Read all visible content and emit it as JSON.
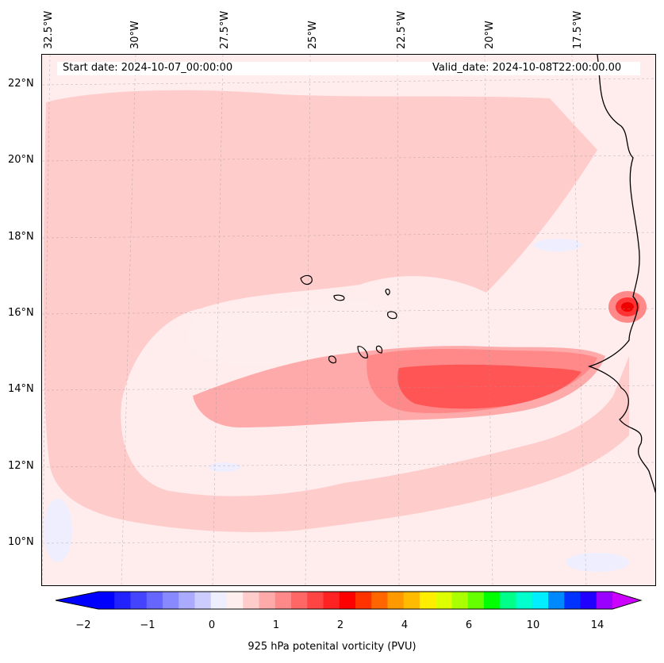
{
  "header": {
    "start_date": "Start date: 2024-10-07_00:00:00",
    "valid_date": "Valid_date: 2024-10-08T22:00:00.00"
  },
  "map": {
    "longitude_labels": [
      "32.5°W",
      "30°W",
      "27.5°W",
      "25°W",
      "22.5°W",
      "20°W",
      "17.5°W"
    ],
    "latitude_labels": [
      "22°N",
      "20°N",
      "18°N",
      "16°N",
      "14°N",
      "12°N",
      "10°N"
    ],
    "field": "925 hPa potential vorticity",
    "max_feature": "intense positive PV maximum near the coast at about 16.5°N, 16.5°W",
    "band_feature": "elevated PV band south of the Cape Verde islands, about 13–15°N"
  },
  "colorbar": {
    "label": "925 hPa potenital vorticity (PVU)",
    "tick_labels": [
      "−2",
      "−1",
      "0",
      "1",
      "2",
      "4",
      "6",
      "10",
      "14"
    ],
    "colors": [
      "#0000ff",
      "#2222ff",
      "#4444ff",
      "#6666ff",
      "#8888ff",
      "#aaaaff",
      "#ccccff",
      "#eeeeff",
      "#ffeeee",
      "#ffcccc",
      "#ffaaaa",
      "#ff8888",
      "#ff6666",
      "#ff4444",
      "#ff2222",
      "#ff0000",
      "#ff3300",
      "#ff6600",
      "#ff9900",
      "#ffbb00",
      "#ffee00",
      "#ddff00",
      "#aaff00",
      "#66ff00",
      "#00ff00",
      "#00ff88",
      "#00ffcc",
      "#00eeff",
      "#0088ff",
      "#0033ff",
      "#2200ff",
      "#9900ff"
    ],
    "under_color": "#0000ff",
    "over_color": "#cc00ff"
  }
}
